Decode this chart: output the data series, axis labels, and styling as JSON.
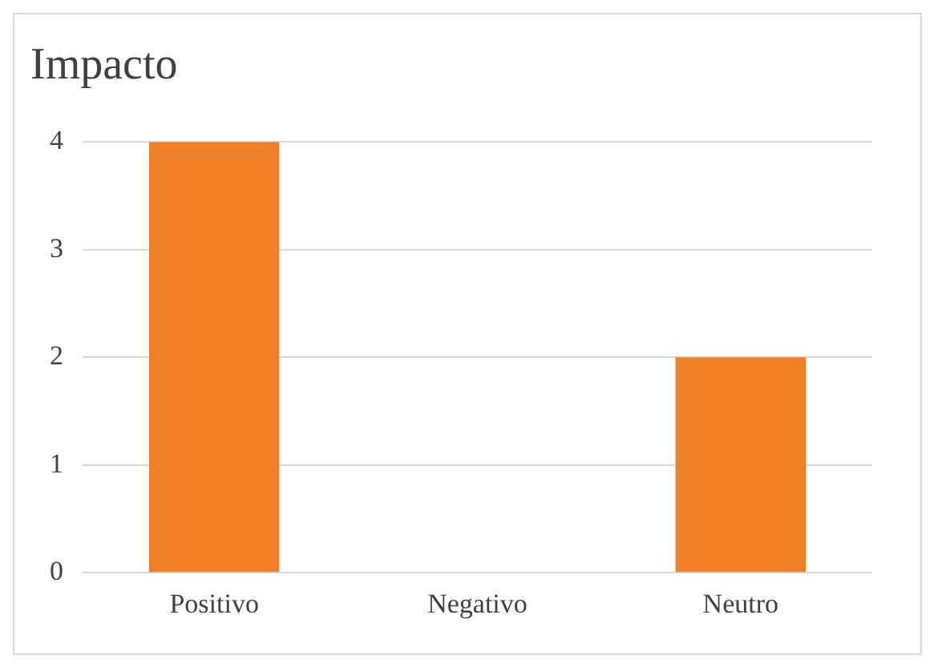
{
  "chart_data": {
    "type": "bar",
    "title": "Impacto",
    "categories": [
      "Positivo",
      "Negativo",
      "Neutro"
    ],
    "values": [
      4,
      0,
      2
    ],
    "color": "#f07f2a",
    "ylim": [
      0,
      4
    ],
    "yticks": [
      0,
      1,
      2,
      3,
      4
    ],
    "grid": "y",
    "legend": false
  }
}
